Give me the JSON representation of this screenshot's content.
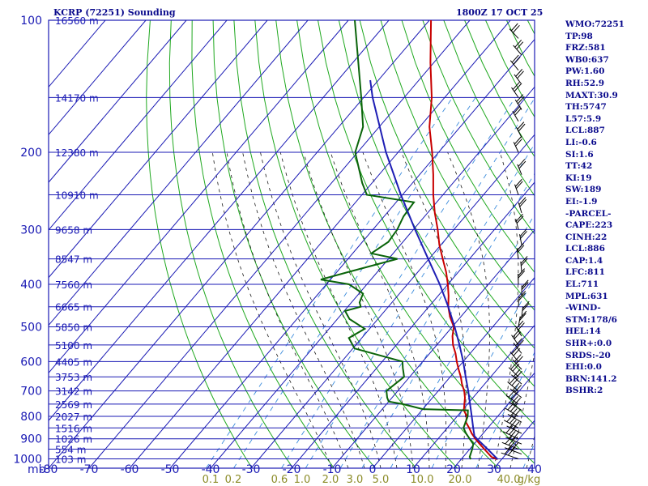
{
  "header": {
    "station": "KCRP (72251) Sounding",
    "valid_time": "1800Z 17 OCT 25"
  },
  "indices": [
    "WMO:72251",
    "TP:98",
    "FRZ:581",
    "WB0:637",
    "PW:1.60",
    "RH:52.9",
    "MAXT:30.9",
    "TH:5747",
    "L57:5.9",
    "LCL:887",
    "LI:-0.6",
    "SI:1.6",
    "TT:42",
    "KI:19",
    "SW:189",
    "EI:-1.9",
    "-PARCEL-",
    "CAPE:223",
    "CINH:22",
    "LCL:886",
    "CAP:1.4",
    "LFC:811",
    "EL:711",
    "MPL:631",
    "-WIND-",
    "STM:178/6",
    "HEL:14",
    "SHR+:0.0",
    "SRDS:-20",
    "EHI:0.0",
    "BRN:141.2",
    "BSHR:2"
  ],
  "chart_data": {
    "type": "line",
    "title": "KCRP (72251) Sounding",
    "xlabel": "",
    "ylabel": "mb",
    "pressure_ticks": [
      100,
      200,
      300,
      400,
      500,
      600,
      700,
      800,
      900,
      1000
    ],
    "pressure_tick_labels": [
      "100",
      "200",
      "300",
      "400",
      "500",
      "600",
      "700",
      "800",
      "900",
      "1000"
    ],
    "pressure_unit_label": "mb",
    "temperature_ticks": [
      -80,
      -70,
      -60,
      -50,
      -40,
      -30,
      -20,
      -10,
      0,
      10,
      20,
      30,
      40
    ],
    "temperature_tick_labels": [
      "-80",
      "-70",
      "-60",
      "-50",
      "-40",
      "-30",
      "-20",
      "-10",
      "0",
      "10",
      "20",
      "30",
      "40"
    ],
    "xlim": [
      -80,
      40
    ],
    "ylim": [
      1000,
      100
    ],
    "height_labels": [
      {
        "p": 100,
        "text": "16560 m"
      },
      {
        "p": 150,
        "text": "14170 m"
      },
      {
        "p": 200,
        "text": "12380 m"
      },
      {
        "p": 250,
        "text": "10910 m"
      },
      {
        "p": 300,
        "text": "9658 m"
      },
      {
        "p": 350,
        "text": "8547 m"
      },
      {
        "p": 400,
        "text": "7560 m"
      },
      {
        "p": 450,
        "text": "6665 m"
      },
      {
        "p": 500,
        "text": "5850 m"
      },
      {
        "p": 550,
        "text": "5100 m"
      },
      {
        "p": 600,
        "text": "4405 m"
      },
      {
        "p": 650,
        "text": "3753 m"
      },
      {
        "p": 700,
        "text": "3142 m"
      },
      {
        "p": 750,
        "text": "2569 m"
      },
      {
        "p": 800,
        "text": "2027 m"
      },
      {
        "p": 850,
        "text": "1516 m"
      },
      {
        "p": 900,
        "text": "1026 m"
      },
      {
        "p": 950,
        "text": "554 m"
      },
      {
        "p": 1000,
        "text": "103 m"
      }
    ],
    "mixing_ratio_labels": [
      "0.1",
      "0.2",
      "0.6",
      "1.0",
      "2.0",
      "3.0",
      "5.0",
      "10.0",
      "20.0",
      "40.0",
      "g/kg"
    ],
    "series": [
      {
        "name": "Temperature",
        "color": "#c80000",
        "points": [
          [
            1002,
            29
          ],
          [
            990,
            27
          ],
          [
            950,
            23.6
          ],
          [
            925,
            21.4
          ],
          [
            900,
            19.2
          ],
          [
            875,
            17.2
          ],
          [
            850,
            15.4
          ],
          [
            825,
            13.4
          ],
          [
            800,
            12.4
          ],
          [
            775,
            10.4
          ],
          [
            750,
            9.2
          ],
          [
            725,
            8.0
          ],
          [
            700,
            6.4
          ],
          [
            675,
            4.4
          ],
          [
            650,
            2.6
          ],
          [
            625,
            0.5
          ],
          [
            600,
            -1.6
          ],
          [
            575,
            -3.6
          ],
          [
            550,
            -6.0
          ],
          [
            525,
            -8.0
          ],
          [
            500,
            -9.6
          ],
          [
            475,
            -12.6
          ],
          [
            450,
            -15.2
          ],
          [
            425,
            -17.4
          ],
          [
            400,
            -20.0
          ],
          [
            375,
            -23.0
          ],
          [
            350,
            -26.6
          ],
          [
            325,
            -30.4
          ],
          [
            300,
            -34.0
          ],
          [
            275,
            -38.2
          ],
          [
            250,
            -42.4
          ],
          [
            225,
            -46.6
          ],
          [
            200,
            -51.6
          ],
          [
            175,
            -57.6
          ],
          [
            150,
            -63.2
          ],
          [
            125,
            -70.8
          ],
          [
            100,
            -79.6
          ]
        ]
      },
      {
        "name": "Dewpoint",
        "color": "#0a640a",
        "points": [
          [
            1002,
            22.4
          ],
          [
            990,
            21.6
          ],
          [
            950,
            20.6
          ],
          [
            925,
            19.8
          ],
          [
            900,
            17.8
          ],
          [
            875,
            15.8
          ],
          [
            850,
            14.0
          ],
          [
            800,
            12.6
          ],
          [
            775,
            11.4
          ],
          [
            770,
            0
          ],
          [
            750,
            -6
          ],
          [
            740,
            -10
          ],
          [
            725,
            -11.2
          ],
          [
            700,
            -12.8
          ],
          [
            650,
            -11.4
          ],
          [
            620,
            -13.6
          ],
          [
            600,
            -15
          ],
          [
            560,
            -29.6
          ],
          [
            530,
            -33.2
          ],
          [
            505,
            -31.2
          ],
          [
            480,
            -37.0
          ],
          [
            460,
            -39.8
          ],
          [
            450,
            -36.8
          ],
          [
            440,
            -38.0
          ],
          [
            420,
            -39.0
          ],
          [
            400,
            -44.4
          ],
          [
            390,
            -52.4
          ],
          [
            375,
            -47.2
          ],
          [
            350,
            -37.8
          ],
          [
            340,
            -45.4
          ],
          [
            320,
            -43.6
          ],
          [
            300,
            -44.0
          ],
          [
            280,
            -45.2
          ],
          [
            260,
            -45.6
          ],
          [
            250,
            -58.8
          ],
          [
            235,
            -62.4
          ],
          [
            200,
            -70.6
          ],
          [
            175,
            -74.0
          ],
          [
            150,
            -80.6
          ],
          [
            125,
            -88.6
          ],
          [
            100,
            -98.4
          ]
        ]
      },
      {
        "name": "Parcel",
        "color": "#1e1eb4",
        "points": [
          [
            1002,
            29
          ],
          [
            950,
            24.4
          ],
          [
            900,
            19.6
          ],
          [
            887,
            18.4
          ],
          [
            850,
            16.4
          ],
          [
            800,
            13.6
          ],
          [
            750,
            10.6
          ],
          [
            700,
            7.4
          ],
          [
            650,
            3.8
          ],
          [
            600,
            0.0
          ],
          [
            550,
            -4.4
          ],
          [
            500,
            -9.4
          ],
          [
            450,
            -15.2
          ],
          [
            400,
            -22.0
          ],
          [
            350,
            -30.2
          ],
          [
            300,
            -39.6
          ],
          [
            250,
            -50.4
          ],
          [
            200,
            -63.0
          ],
          [
            150,
            -77.8
          ],
          [
            137,
            -82.0
          ]
        ]
      }
    ],
    "wind_barbs": [
      {
        "p": 1000
      },
      {
        "p": 975
      },
      {
        "p": 950
      },
      {
        "p": 925
      },
      {
        "p": 900
      },
      {
        "p": 875
      },
      {
        "p": 850
      },
      {
        "p": 825
      },
      {
        "p": 800
      },
      {
        "p": 775
      },
      {
        "p": 750
      },
      {
        "p": 725
      },
      {
        "p": 700
      },
      {
        "p": 675
      },
      {
        "p": 650
      },
      {
        "p": 625
      },
      {
        "p": 600
      },
      {
        "p": 575
      },
      {
        "p": 550
      },
      {
        "p": 525
      },
      {
        "p": 500
      },
      {
        "p": 475
      },
      {
        "p": 450
      },
      {
        "p": 425
      },
      {
        "p": 400
      },
      {
        "p": 375
      },
      {
        "p": 350
      },
      {
        "p": 325
      },
      {
        "p": 300
      },
      {
        "p": 275
      },
      {
        "p": 250
      },
      {
        "p": 225
      },
      {
        "p": 200
      },
      {
        "p": 185
      },
      {
        "p": 170
      },
      {
        "p": 160
      },
      {
        "p": 150
      },
      {
        "p": 140
      },
      {
        "p": 130
      },
      {
        "p": 120
      },
      {
        "p": 110
      },
      {
        "p": 100
      }
    ],
    "grid": true,
    "colors": {
      "frame": "#1a1ab4",
      "isotherm": "#1a1ab4",
      "isobar": "#1a1ab4",
      "dry_adiabat": "#1fa81f",
      "moist_adiabat": "#1a1a1a",
      "mixing_ratio": "#3c8cdc",
      "label_text": "#1a1ab4",
      "mixing_label": "#8c8c28"
    }
  }
}
